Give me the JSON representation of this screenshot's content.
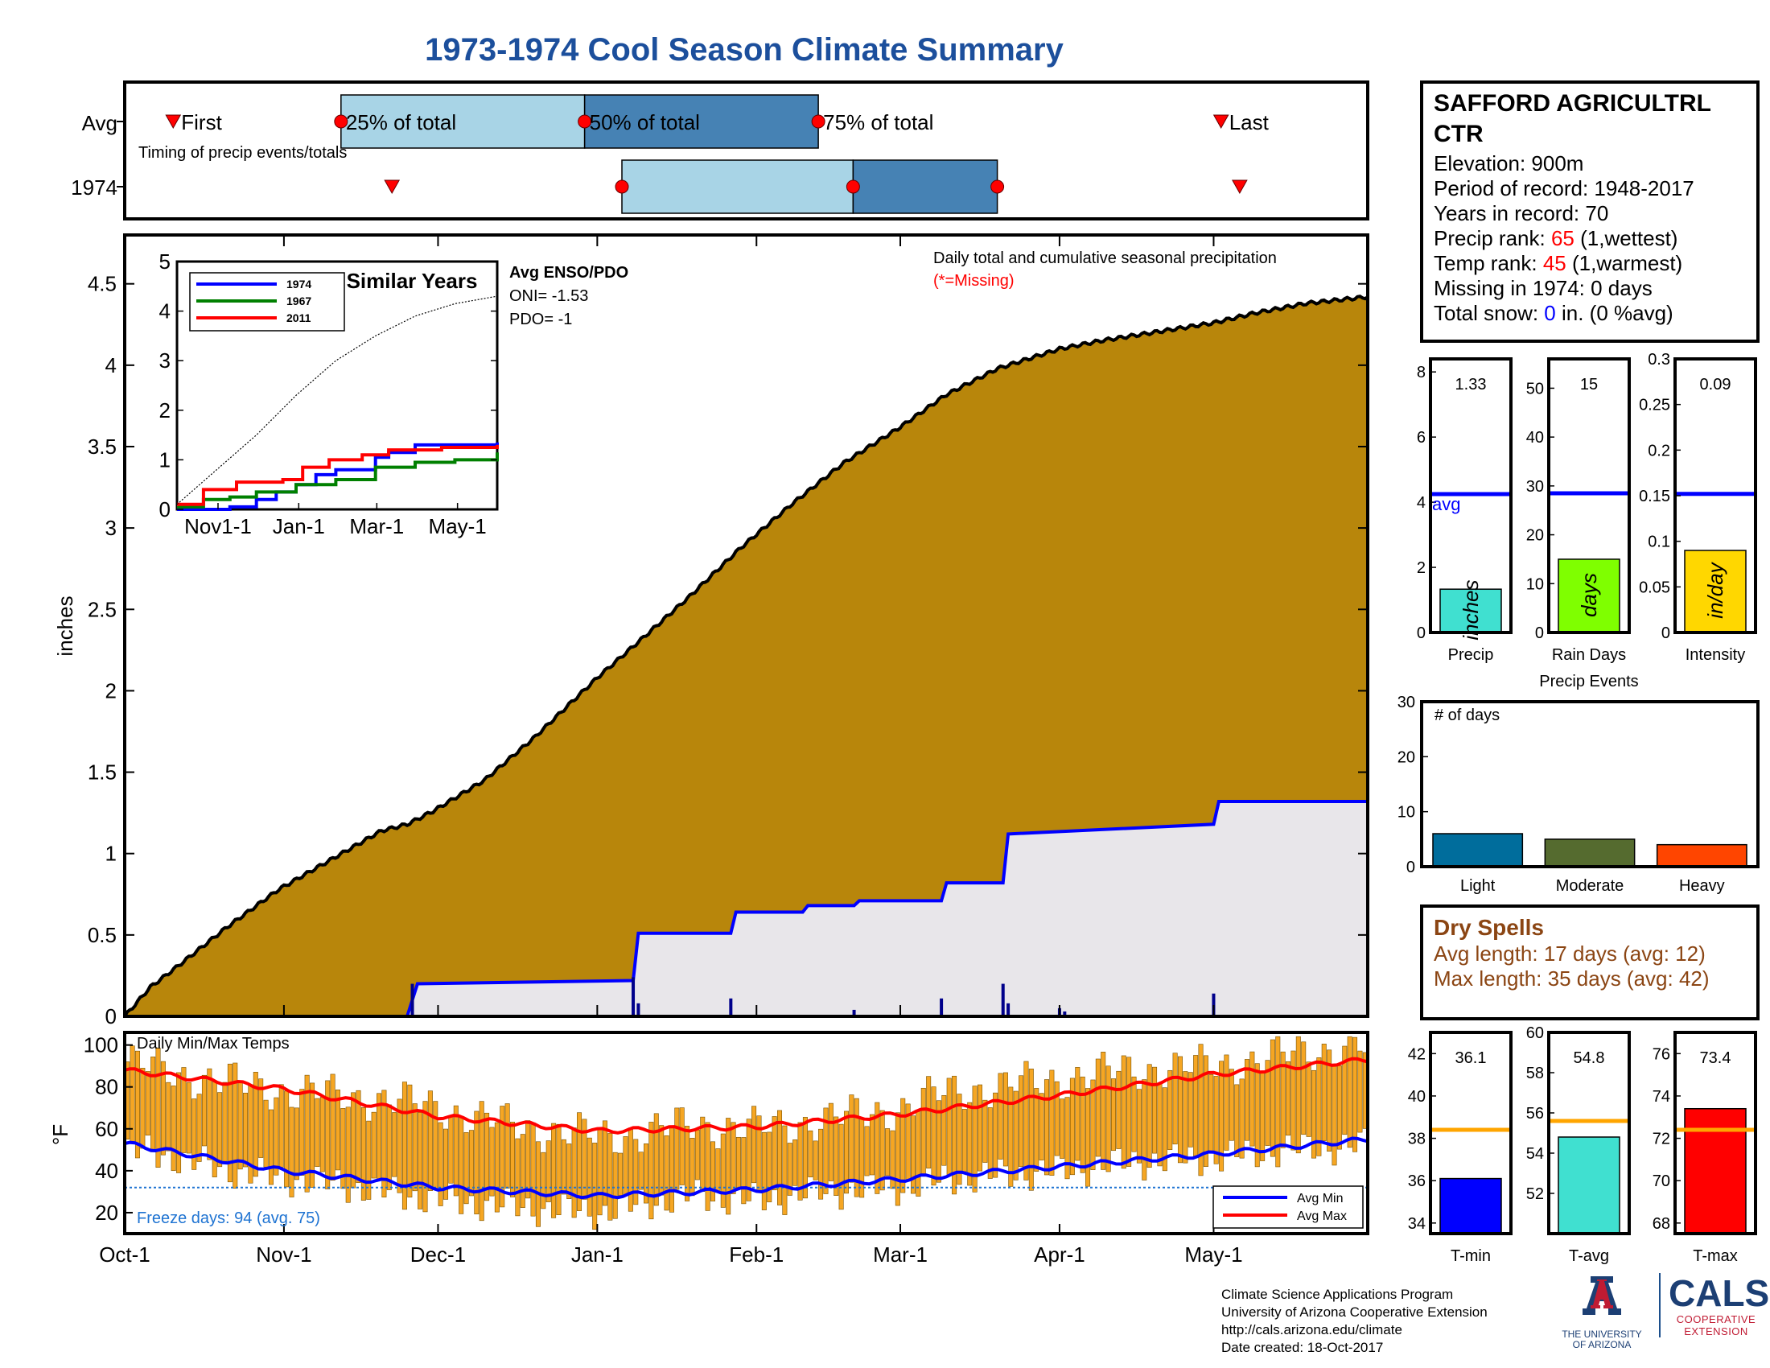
{
  "title": "1973-1974 Cool Season Climate Summary",
  "timing_panel": {
    "row_labels": [
      "Avg",
      "1974"
    ],
    "caption": "Timing of precip events/totals",
    "avg_labels": {
      "first": "First",
      "p25": "25% of total",
      "p50": "50% of total",
      "p75": "75% of total",
      "last": "Last"
    },
    "avg": {
      "first": 0.039,
      "p25": 0.174,
      "p50": 0.37,
      "p75": 0.558,
      "last": 0.882
    },
    "y1974": {
      "first": 0.215,
      "p25": 0.4,
      "p50": 0.586,
      "p75": 0.702,
      "last": 0.897
    },
    "colors": {
      "light": "#a8d4e6",
      "dark": "#4682b4",
      "marker": "#ff0000"
    }
  },
  "station": {
    "name": "SAFFORD AGRICULTRL CTR",
    "elevation": "Elevation: 900m",
    "period": "Period of record: 1948-2017",
    "years": "Years in record: 70",
    "precip_rank_label": "Precip rank: ",
    "precip_rank_value": "65",
    "precip_rank_note": " (1,wettest)",
    "temp_rank_label": "Temp rank: ",
    "temp_rank_value": "45",
    "temp_rank_note": " (1,warmest)",
    "missing": "Missing in 1974: 0 days",
    "snow_label": "Total snow: ",
    "snow_value": "0",
    "snow_note": " in. (0 %avg)"
  },
  "chart_data": [
    {
      "type": "area",
      "name": "main-precip",
      "ylabel": "inches",
      "annotation": "Daily total and cumulative seasonal precipitation",
      "missing_note": "(*=Missing)",
      "ylim": [
        0,
        4.8
      ],
      "yticks": [
        0,
        0.5,
        1,
        1.5,
        2,
        2.5,
        3,
        3.5,
        4,
        4.5
      ],
      "x_ticks": [
        "Oct-1",
        "Nov-1",
        "Dec-1",
        "Jan-1",
        "Feb-1",
        "Mar-1",
        "Apr-1",
        "May-1"
      ],
      "x_tick_days": [
        0,
        31,
        61,
        92,
        123,
        151,
        182,
        212
      ],
      "season_days": 242,
      "avg_cumulative": {
        "day": [
          0,
          5,
          10,
          20,
          30,
          40,
          50,
          55,
          60,
          70,
          80,
          92,
          100,
          110,
          120,
          130,
          140,
          151,
          160,
          170,
          182,
          190,
          200,
          212,
          220,
          230,
          242
        ],
        "value": [
          0,
          0.18,
          0.3,
          0.55,
          0.78,
          0.96,
          1.14,
          1.18,
          1.26,
          1.45,
          1.72,
          2.08,
          2.3,
          2.58,
          2.88,
          3.15,
          3.4,
          3.62,
          3.82,
          3.98,
          4.1,
          4.15,
          4.2,
          4.26,
          4.32,
          4.38,
          4.42
        ]
      },
      "y1974_cumulative": {
        "day": [
          0,
          55,
          57,
          99,
          100,
          118,
          119,
          132,
          133,
          142,
          143,
          159,
          160,
          171,
          172,
          212,
          213,
          242
        ],
        "value": [
          0,
          0,
          0.2,
          0.22,
          0.51,
          0.51,
          0.64,
          0.64,
          0.68,
          0.68,
          0.71,
          0.71,
          0.82,
          0.82,
          1.12,
          1.18,
          1.32,
          1.32
        ]
      },
      "daily_1974": [
        {
          "day": 56,
          "value": 0.2
        },
        {
          "day": 99,
          "value": 0.24
        },
        {
          "day": 100,
          "value": 0.08
        },
        {
          "day": 118,
          "value": 0.11
        },
        {
          "day": 142,
          "value": 0.04
        },
        {
          "day": 159,
          "value": 0.11
        },
        {
          "day": 171,
          "value": 0.2
        },
        {
          "day": 172,
          "value": 0.08
        },
        {
          "day": 182,
          "value": 0.05
        },
        {
          "day": 183,
          "value": 0.03
        },
        {
          "day": 212,
          "value": 0.14
        }
      ],
      "colors": {
        "avg_fill": "#b8860b",
        "y1974_fill": "#e8e6ea",
        "y1974_line": "#0000ff"
      }
    },
    {
      "type": "line",
      "name": "similar-years",
      "title": "Similar Years",
      "ylim": [
        0,
        5
      ],
      "yticks": [
        0,
        1,
        2,
        3,
        4,
        5
      ],
      "x_ticks": [
        "Nov1-1",
        "Jan-1",
        "Mar-1",
        "May-1"
      ],
      "series": [
        {
          "name": "1974",
          "color": "#0000ff",
          "x": [
            0,
            30,
            40,
            60,
            75,
            90,
            105,
            120,
            150,
            160,
            180,
            242
          ],
          "y": [
            0,
            0,
            0.05,
            0.2,
            0.35,
            0.5,
            0.7,
            0.8,
            1.05,
            1.15,
            1.3,
            1.35
          ]
        },
        {
          "name": "1967",
          "color": "#008000",
          "x": [
            0,
            20,
            40,
            60,
            90,
            120,
            150,
            180,
            210,
            242
          ],
          "y": [
            0.05,
            0.2,
            0.25,
            0.35,
            0.5,
            0.6,
            0.85,
            0.95,
            1.0,
            1.15
          ]
        },
        {
          "name": "2011",
          "color": "#ff0000",
          "x": [
            0,
            20,
            45,
            80,
            95,
            115,
            140,
            160,
            200,
            242
          ],
          "y": [
            0.1,
            0.4,
            0.55,
            0.6,
            0.85,
            1.0,
            1.1,
            1.2,
            1.25,
            1.3
          ]
        },
        {
          "name": "avg",
          "color": "#000000",
          "x": [
            0,
            30,
            60,
            90,
            120,
            150,
            180,
            210,
            242
          ],
          "y": [
            0.1,
            0.8,
            1.5,
            2.3,
            3.0,
            3.5,
            3.9,
            4.15,
            4.3
          ]
        }
      ]
    },
    {
      "type": "bar",
      "name": "daily-temps",
      "title": "Daily Min/Max Temps",
      "ylabel": "°F",
      "ylim": [
        10,
        106
      ],
      "yticks": [
        20,
        40,
        60,
        80,
        100
      ],
      "freeze_line": 32,
      "freeze_note": "Freeze days: 94 (avg. 75)",
      "legend": [
        "Avg Min",
        "Avg Max"
      ],
      "avg_max": {
        "day": [
          0,
          31,
          61,
          92,
          123,
          151,
          182,
          212,
          242
        ],
        "value": [
          88,
          79,
          66,
          59,
          61,
          67,
          76,
          86,
          93
        ]
      },
      "avg_min": {
        "day": [
          0,
          31,
          61,
          92,
          123,
          151,
          182,
          212,
          242
        ],
        "value": [
          53,
          40,
          32,
          28,
          31,
          36,
          42,
          48,
          55
        ]
      },
      "daily_max_knots": {
        "day": [
          0,
          10,
          20,
          31,
          40,
          50,
          61,
          70,
          80,
          92,
          100,
          110,
          123,
          135,
          151,
          160,
          170,
          182,
          195,
          212,
          225,
          240,
          242
        ],
        "value": [
          92,
          86,
          82,
          78,
          76,
          74,
          70,
          64,
          60,
          56,
          58,
          62,
          60,
          64,
          70,
          78,
          80,
          84,
          88,
          90,
          95,
          100,
          96
        ]
      },
      "daily_min_knots": {
        "day": [
          0,
          10,
          20,
          31,
          40,
          50,
          61,
          70,
          80,
          92,
          100,
          110,
          123,
          135,
          151,
          160,
          170,
          182,
          195,
          212,
          225,
          240,
          242
        ],
        "value": [
          50,
          46,
          40,
          36,
          34,
          30,
          26,
          24,
          22,
          20,
          24,
          28,
          26,
          30,
          32,
          36,
          38,
          40,
          44,
          46,
          50,
          52,
          54
        ]
      },
      "colors": {
        "bar": "#f5a623",
        "bar_edge": "#7a5200",
        "max": "#ff0000",
        "min": "#0000ff",
        "freeze": "#1e73d2"
      }
    },
    {
      "type": "bar",
      "name": "precip-total",
      "xlabel": "Precip",
      "ylim": [
        0,
        8.4
      ],
      "yticks": [
        0,
        2,
        4,
        6,
        8
      ],
      "value": 1.33,
      "value_label": "1.33",
      "avg": 4.25,
      "avg_label": "avg",
      "unit_label": "inches",
      "color": "#40e0d0"
    },
    {
      "type": "bar",
      "name": "rain-days",
      "xlabel": "Rain Days",
      "ylim": [
        0,
        56
      ],
      "yticks": [
        0,
        10,
        20,
        30,
        40,
        50
      ],
      "value": 15,
      "value_label": "15",
      "avg": 28.5,
      "unit_label": "days",
      "color": "#7fff00"
    },
    {
      "type": "bar",
      "name": "intensity",
      "xlabel": "Intensity",
      "ylim": [
        0,
        0.3
      ],
      "yticks": [
        0,
        0.05,
        0.1,
        0.15,
        0.2,
        0.25,
        0.3
      ],
      "ytick_labels": [
        "0",
        "0.05",
        "0.1",
        "0.15",
        "0.2",
        "0.25",
        "0.3"
      ],
      "value": 0.09,
      "value_label": "0.09",
      "avg": 0.152,
      "unit_label": "in/day",
      "color": "#ffd700"
    },
    {
      "type": "bar",
      "name": "precip-events",
      "title": "Precip Events",
      "subtitle": "# of days",
      "ylim": [
        0,
        30
      ],
      "yticks": [
        0,
        10,
        20,
        30
      ],
      "categories": [
        "Light",
        "Moderate",
        "Heavy"
      ],
      "values": [
        6,
        5,
        4
      ],
      "colors": [
        "#006d9c",
        "#556b2f",
        "#ff4500"
      ]
    },
    {
      "type": "bar",
      "name": "t-min",
      "xlabel": "T-min",
      "ylim": [
        33.5,
        43
      ],
      "yticks": [
        34,
        36,
        38,
        40,
        42
      ],
      "value": 36.1,
      "value_label": "36.1",
      "avg": 38.4,
      "color": "#0000ff"
    },
    {
      "type": "bar",
      "name": "t-avg",
      "xlabel": "T-avg",
      "ylim": [
        50,
        60
      ],
      "yticks": [
        52,
        54,
        56,
        58,
        60
      ],
      "value": 54.8,
      "value_label": "54.8",
      "avg": 55.6,
      "color": "#40e0d0"
    },
    {
      "type": "bar",
      "name": "t-max",
      "xlabel": "T-max",
      "ylim": [
        67.5,
        77
      ],
      "yticks": [
        68,
        70,
        72,
        74,
        76
      ],
      "value": 73.4,
      "value_label": "73.4",
      "avg": 72.4,
      "color": "#ff0000"
    }
  ],
  "dry_spells": {
    "title": "Dry Spells",
    "avg_length": "Avg length: 17 days (avg: 12)",
    "max_length": "Max length: 35 days (avg: 42)",
    "color": "#8b4513"
  },
  "footer": {
    "line1": "Climate Science Applications Program",
    "line2": "University of Arizona Cooperative Extension",
    "line3": "http://cals.arizona.edu/climate",
    "line4": " Date created: 18-Oct-2017"
  },
  "logos": {
    "ua_line1": "THE UNIVERSITY",
    "ua_line2": "OF ARIZONA",
    "cals": "CALS",
    "cals_line1": "COOPERATIVE",
    "cals_line2": "EXTENSION"
  }
}
